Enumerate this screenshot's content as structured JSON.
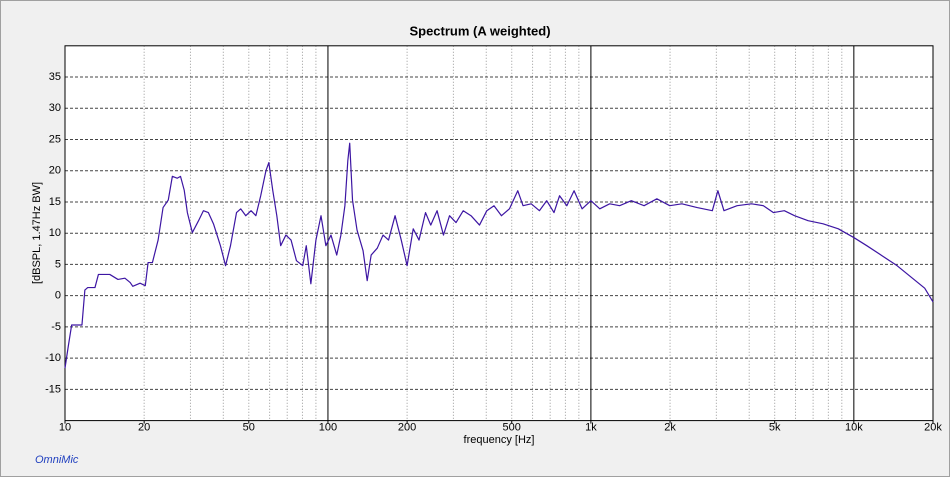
{
  "chart_data": {
    "type": "line",
    "title": "Spectrum (A weighted)",
    "xlabel": "frequency [Hz]",
    "ylabel": "[dBSPL, 1.47Hz BW]",
    "brand": "OmniMic",
    "xscale": "log",
    "color": "#3d16a3",
    "xlim": [
      10,
      20000
    ],
    "ylim": [
      -20,
      40
    ],
    "xticks": [
      10,
      20,
      50,
      100,
      200,
      500,
      {
        "value": 1000,
        "label": "1k"
      },
      {
        "value": 2000,
        "label": "2k"
      },
      {
        "value": 5000,
        "label": "5k"
      },
      {
        "value": 10000,
        "label": "10k"
      },
      {
        "value": 20000,
        "label": "20k"
      }
    ],
    "yticks": [
      -15,
      -10,
      -5,
      0,
      5,
      10,
      15,
      20,
      25,
      30,
      35
    ],
    "xgrid": [
      20,
      30,
      40,
      50,
      60,
      70,
      80,
      90,
      200,
      300,
      400,
      500,
      600,
      700,
      800,
      900,
      2000,
      3000,
      4000,
      5000,
      6000,
      7000,
      8000,
      9000
    ],
    "xgrid_major": [
      100,
      1000,
      10000
    ],
    "grid": true,
    "x": [
      10,
      10.3,
      10.6,
      11.6,
      11.9,
      12.2,
      13,
      13.4,
      14.8,
      15.9,
      16.9,
      17.7,
      18.1,
      19.3,
      20.2,
      20.7,
      21.5,
      22.6,
      23.6,
      24.7,
      25.6,
      26.7,
      27.5,
      28.4,
      29.2,
      30.5,
      32.2,
      33.6,
      35.1,
      36.7,
      39,
      40.8,
      42.6,
      44.9,
      46.6,
      48.7,
      51,
      53.2,
      55.5,
      58.1,
      59.6,
      61.7,
      63.9,
      66.1,
      69.2,
      72.4,
      75.9,
      80.2,
      82.7,
      86.1,
      90,
      94.1,
      98.2,
      102.7,
      108,
      112,
      116,
      119,
      121,
      124,
      129,
      136,
      141,
      146,
      154,
      162,
      170,
      180,
      190,
      200,
      211,
      222,
      235,
      246,
      260,
      275,
      290,
      307,
      327,
      350,
      377,
      402,
      428,
      457,
      490,
      527,
      552,
      593,
      637,
      679,
      724,
      760,
      810,
      863,
      926,
      1000,
      1081,
      1179,
      1286,
      1425,
      1593,
      1782,
      1995,
      2218,
      2536,
      2896,
      3040,
      3207,
      3597,
      4080,
      4530,
      4947,
      5440,
      5950,
      6700,
      7640,
      8730,
      10000,
      11200,
      12800,
      14600,
      16700,
      18600,
      20000
    ],
    "values": [
      -11.6,
      -8,
      -4.7,
      -4.7,
      0.9,
      1.3,
      1.3,
      3.4,
      3.4,
      2.6,
      2.8,
      2.1,
      1.5,
      2,
      1.6,
      5.3,
      5.3,
      8.9,
      14.1,
      15.3,
      19.1,
      18.8,
      19.1,
      16.9,
      13.3,
      10.1,
      12,
      13.6,
      13.3,
      11.5,
      8,
      4.8,
      8,
      13.3,
      13.9,
      12.8,
      13.6,
      12.8,
      16,
      20,
      21.3,
      16.8,
      12.8,
      8,
      9.7,
      8.9,
      5.6,
      4.8,
      8,
      1.9,
      8.9,
      12.8,
      8,
      9.7,
      6.5,
      9.7,
      14.4,
      21.6,
      24.4,
      15.3,
      10.5,
      7.2,
      2.4,
      6.5,
      7.6,
      9.7,
      8.9,
      12.8,
      8.9,
      4.8,
      10.7,
      8.9,
      13.3,
      11.3,
      13.6,
      9.7,
      12.8,
      11.7,
      13.6,
      12.8,
      11.3,
      13.6,
      14.4,
      12.8,
      13.9,
      16.8,
      14.4,
      14.7,
      13.6,
      15.2,
      13.3,
      16,
      14.4,
      16.8,
      13.9,
      15.2,
      13.9,
      14.7,
      14.4,
      15.2,
      14.4,
      15.5,
      14.4,
      14.7,
      14.1,
      13.6,
      16.8,
      13.6,
      14.4,
      14.7,
      14.4,
      13.3,
      13.6,
      12.8,
      12,
      11.5,
      10.7,
      9.3,
      8,
      6.4,
      4.8,
      2.8,
      1.2,
      -1
    ]
  }
}
